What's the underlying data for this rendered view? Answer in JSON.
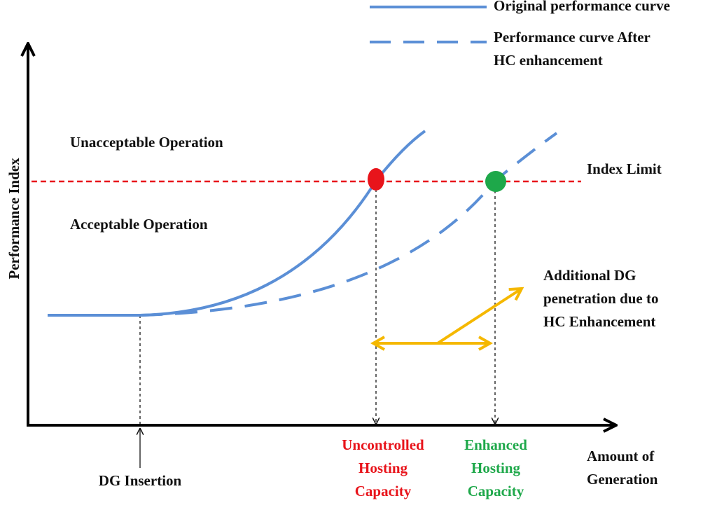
{
  "legend": [
    {
      "lines": [
        "Original performance curve"
      ]
    },
    {
      "lines": [
        "Performance curve After",
        "HC enhancement"
      ]
    }
  ],
  "y_axis_label": "Performance Index",
  "regions": {
    "unacceptable": "Unacceptable Operation",
    "acceptable": "Acceptable Operation"
  },
  "index_limit": "Index Limit",
  "annotation": {
    "lines": [
      "Additional DG",
      "penetration due to",
      "HC Enhancement"
    ]
  },
  "x_labels": {
    "dg_insertion": "DG Insertion",
    "uncontrolled": [
      "Uncontrolled",
      "Hosting",
      "Capacity"
    ],
    "enhanced": [
      "Enhanced",
      "Hosting",
      "Capacity"
    ],
    "x_axis": [
      "Amount of",
      "Generation"
    ]
  }
}
